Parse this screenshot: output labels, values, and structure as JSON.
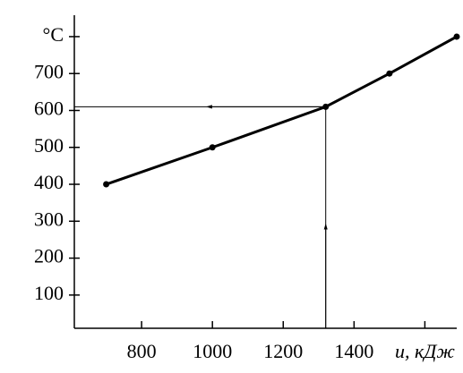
{
  "chart_data": {
    "type": "line",
    "x": [
      700,
      1000,
      1320,
      1500,
      1690
    ],
    "series": [
      {
        "color": "#000000",
        "values": [
          400,
          500,
          610,
          700,
          800
        ]
      }
    ],
    "xlim": [
      610,
      1690
    ],
    "ylim": [
      10,
      858
    ],
    "xticks": [
      800,
      1000,
      1200,
      1400,
      {
        "value": 1600,
        "label": "u, кДж"
      }
    ],
    "yticks": [
      100,
      200,
      300,
      400,
      500,
      600,
      700,
      {
        "value": 800,
        "label": "°C"
      }
    ],
    "guide_point": 2,
    "grid": false
  }
}
